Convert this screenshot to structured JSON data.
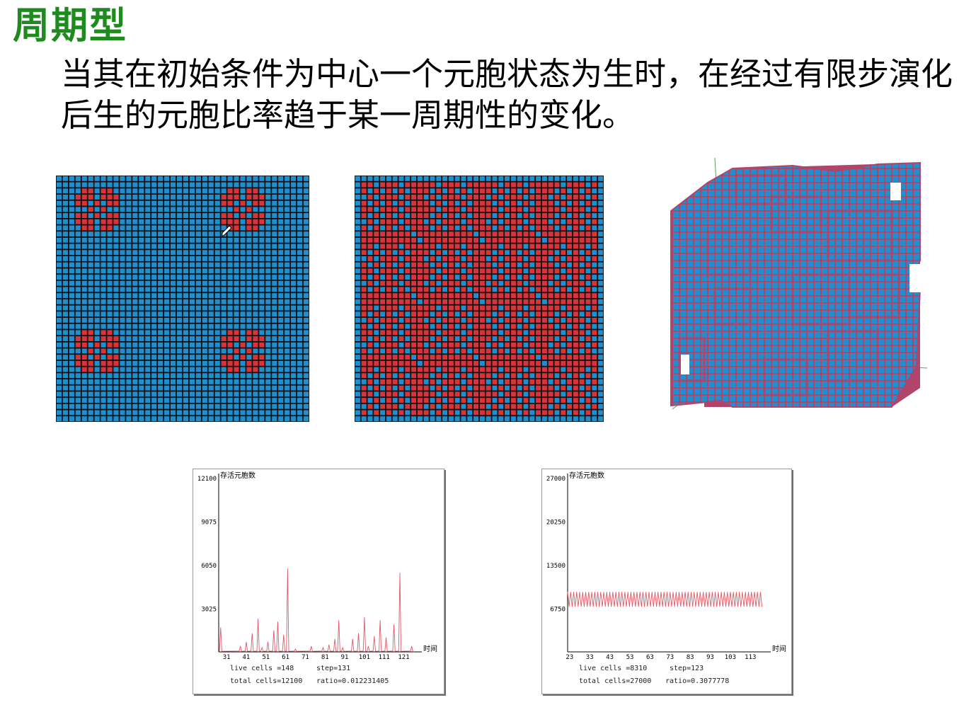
{
  "page": {
    "title": "周期型",
    "paragraph": "当其在初始条件为中心一个元胞状态为生时，在经过有限步演化后生的元胞比率趋于某一周期性的变化。"
  },
  "colors": {
    "title_green": "#1f8a1f",
    "cell_blue": "#1f8fd0",
    "cell_red": "#d9343a",
    "grid_line": "#111111",
    "cube_edge": "#b0446a",
    "series_red": "#e05a66"
  },
  "icons": [
    "cursor-icon"
  ],
  "panels": {
    "grid1_desc": "2D cellular automaton — four red flower clusters in corners",
    "grid2_desc": "2D cellular automaton — repeating red/blue pattern",
    "cube_desc": "3D cellular automaton cube"
  },
  "chart_data": [
    {
      "type": "line",
      "ylabel": "存活元胞数",
      "xlabel": "时间",
      "yticks": [
        "12100",
        "9075",
        "6050",
        "3025"
      ],
      "xticks": [
        "31",
        "41",
        "51",
        "61",
        "71",
        "81",
        "91",
        "101",
        "111",
        "121"
      ],
      "ylim": [
        0,
        12100
      ],
      "xlim": [
        27,
        128
      ],
      "peaks": [
        {
          "x": 28,
          "y": 1700
        },
        {
          "x": 38,
          "y": 400
        },
        {
          "x": 41,
          "y": 700
        },
        {
          "x": 44,
          "y": 1300
        },
        {
          "x": 47,
          "y": 2300
        },
        {
          "x": 49,
          "y": 300
        },
        {
          "x": 52,
          "y": 700
        },
        {
          "x": 55,
          "y": 1500
        },
        {
          "x": 57,
          "y": 2100
        },
        {
          "x": 60,
          "y": 1200
        },
        {
          "x": 62,
          "y": 5800
        },
        {
          "x": 66,
          "y": 200
        },
        {
          "x": 74,
          "y": 400
        },
        {
          "x": 80,
          "y": 300
        },
        {
          "x": 83,
          "y": 500
        },
        {
          "x": 86,
          "y": 900
        },
        {
          "x": 88,
          "y": 2200
        },
        {
          "x": 90,
          "y": 300
        },
        {
          "x": 95,
          "y": 900
        },
        {
          "x": 98,
          "y": 1300
        },
        {
          "x": 101,
          "y": 2400
        },
        {
          "x": 103,
          "y": 400
        },
        {
          "x": 106,
          "y": 1100
        },
        {
          "x": 109,
          "y": 2200
        },
        {
          "x": 112,
          "y": 1000
        },
        {
          "x": 116,
          "y": 1900
        },
        {
          "x": 119,
          "y": 5500
        },
        {
          "x": 125,
          "y": 400
        }
      ],
      "footer": {
        "live": "live cells =148",
        "step": "step=131",
        "total": "total cells=12100",
        "ratio": "ratio=0.012231405"
      }
    },
    {
      "type": "line",
      "ylabel": "存活元胞数",
      "xlabel": "时间",
      "yticks": [
        "27000",
        "20250",
        "13500",
        "6750"
      ],
      "xticks": [
        "23",
        "33",
        "43",
        "53",
        "63",
        "73",
        "83",
        "93",
        "103",
        "113"
      ],
      "ylim": [
        0,
        27000
      ],
      "xlim": [
        22,
        121
      ],
      "oscillation": {
        "x_start": 22,
        "x_end": 119,
        "high": 9300,
        "low": 7000
      },
      "footer": {
        "live": "live cells =8310",
        "step": "step=123",
        "total": "total cells=27000",
        "ratio": "ratio=0.3077778"
      }
    }
  ]
}
